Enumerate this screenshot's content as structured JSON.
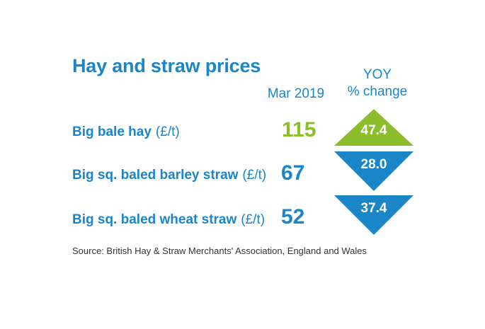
{
  "title": "Hay and straw prices",
  "columns": {
    "period": "Mar 2019",
    "yoy_line1": "YOY",
    "yoy_line2": "% change"
  },
  "rows": [
    {
      "label": "Big bale hay",
      "unit": "(£/t)",
      "price": "115",
      "yoy": "47.4",
      "direction": "up",
      "color": "#8cbd2c"
    },
    {
      "label": "Big sq. baled barley straw",
      "unit": "(£/t)",
      "price": "67",
      "yoy": "28.0",
      "direction": "down",
      "color": "#1a86c8"
    },
    {
      "label": "Big sq. baled wheat straw",
      "unit": "(£/t)",
      "price": "52",
      "yoy": "37.4",
      "direction": "down",
      "color": "#1a86c8"
    }
  ],
  "source": "Source: British Hay & Straw Merchants' Association, England and Wales"
}
